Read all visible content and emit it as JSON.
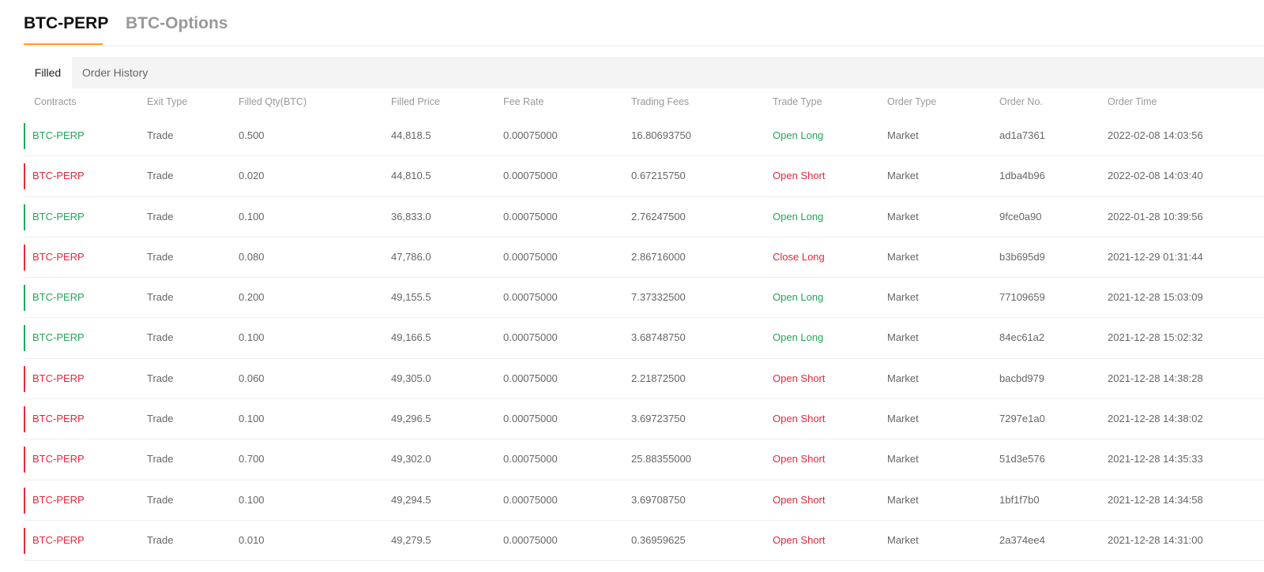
{
  "top_tabs": [
    {
      "label": "BTC-PERP",
      "active": true
    },
    {
      "label": "BTC-Options",
      "active": false
    }
  ],
  "sub_tabs": [
    {
      "label": "Filled",
      "active": true
    },
    {
      "label": "Order History",
      "active": false
    }
  ],
  "colors": {
    "accent": "#f0a020",
    "long": "#23a55a",
    "short": "#e8283c"
  },
  "table": {
    "columns": [
      "Contracts",
      "Exit Type",
      "Filled Qty(BTC)",
      "Filled Price",
      "Fee Rate",
      "Trading Fees",
      "Trade Type",
      "Order Type",
      "Order No.",
      "Order Time"
    ],
    "rows": [
      {
        "side": "long",
        "cells": [
          "BTC-PERP",
          "Trade",
          "0.500",
          "44,818.5",
          "0.00075000",
          "16.80693750",
          "Open Long",
          "Market",
          "ad1a7361",
          "2022-02-08 14:03:56"
        ]
      },
      {
        "side": "short",
        "cells": [
          "BTC-PERP",
          "Trade",
          "0.020",
          "44,810.5",
          "0.00075000",
          "0.67215750",
          "Open Short",
          "Market",
          "1dba4b96",
          "2022-02-08 14:03:40"
        ]
      },
      {
        "side": "long",
        "cells": [
          "BTC-PERP",
          "Trade",
          "0.100",
          "36,833.0",
          "0.00075000",
          "2.76247500",
          "Open Long",
          "Market",
          "9fce0a90",
          "2022-01-28 10:39:56"
        ]
      },
      {
        "side": "short",
        "cells": [
          "BTC-PERP",
          "Trade",
          "0.080",
          "47,786.0",
          "0.00075000",
          "2.86716000",
          "Close Long",
          "Market",
          "b3b695d9",
          "2021-12-29 01:31:44"
        ]
      },
      {
        "side": "long",
        "cells": [
          "BTC-PERP",
          "Trade",
          "0.200",
          "49,155.5",
          "0.00075000",
          "7.37332500",
          "Open Long",
          "Market",
          "77109659",
          "2021-12-28 15:03:09"
        ]
      },
      {
        "side": "long",
        "cells": [
          "BTC-PERP",
          "Trade",
          "0.100",
          "49,166.5",
          "0.00075000",
          "3.68748750",
          "Open Long",
          "Market",
          "84ec61a2",
          "2021-12-28 15:02:32"
        ]
      },
      {
        "side": "short",
        "cells": [
          "BTC-PERP",
          "Trade",
          "0.060",
          "49,305.0",
          "0.00075000",
          "2.21872500",
          "Open Short",
          "Market",
          "bacbd979",
          "2021-12-28 14:38:28"
        ]
      },
      {
        "side": "short",
        "cells": [
          "BTC-PERP",
          "Trade",
          "0.100",
          "49,296.5",
          "0.00075000",
          "3.69723750",
          "Open Short",
          "Market",
          "7297e1a0",
          "2021-12-28 14:38:02"
        ]
      },
      {
        "side": "short",
        "cells": [
          "BTC-PERP",
          "Trade",
          "0.700",
          "49,302.0",
          "0.00075000",
          "25.88355000",
          "Open Short",
          "Market",
          "51d3e576",
          "2021-12-28 14:35:33"
        ]
      },
      {
        "side": "short",
        "cells": [
          "BTC-PERP",
          "Trade",
          "0.100",
          "49,294.5",
          "0.00075000",
          "3.69708750",
          "Open Short",
          "Market",
          "1bf1f7b0",
          "2021-12-28 14:34:58"
        ]
      },
      {
        "side": "short",
        "cells": [
          "BTC-PERP",
          "Trade",
          "0.010",
          "49,279.5",
          "0.00075000",
          "0.36959625",
          "Open Short",
          "Market",
          "2a374ee4",
          "2021-12-28 14:31:00"
        ]
      }
    ]
  }
}
